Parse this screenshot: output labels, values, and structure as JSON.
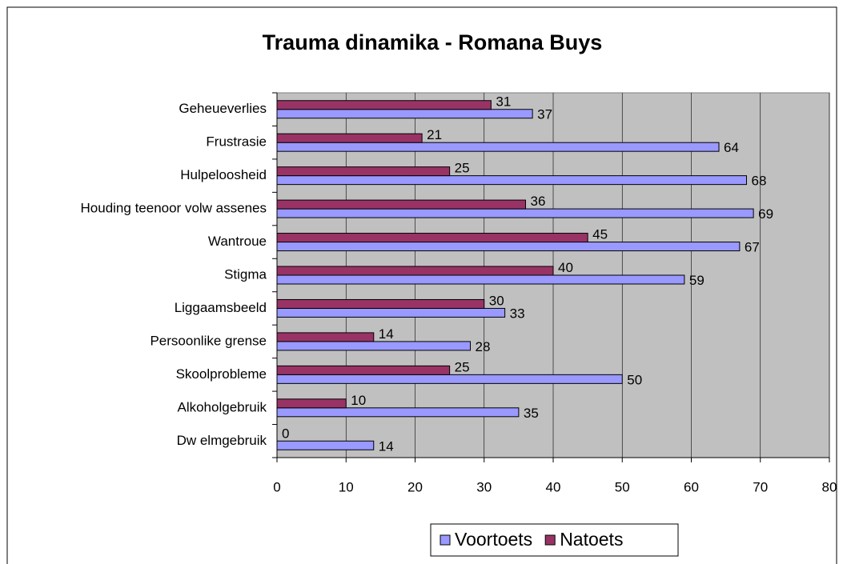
{
  "chart_data": {
    "type": "bar",
    "orientation": "horizontal",
    "title": "Trauma dinamika - Romana Buys",
    "categories": [
      "Geheueverlies",
      "Frustrasie",
      "Hulpeloosheid",
      "Houding teenoor volw assenes",
      "Wantroue",
      "Stigma",
      "Liggaamsbeeld",
      "Persoonlike grense",
      "Skoolprobleme",
      "Alkoholgebruik",
      "Dw elmgebruik"
    ],
    "series": [
      {
        "name": "Voortoets",
        "color": "#9999ff",
        "values": [
          37,
          64,
          68,
          69,
          67,
          59,
          33,
          28,
          50,
          35,
          14
        ]
      },
      {
        "name": "Natoets",
        "color": "#993366",
        "values": [
          31,
          21,
          25,
          36,
          45,
          40,
          30,
          14,
          25,
          10,
          0
        ]
      }
    ],
    "xlim": [
      0,
      80
    ],
    "xticks": [
      0,
      10,
      20,
      30,
      40,
      50,
      60,
      70,
      80
    ],
    "grid": true,
    "legend": "bottom",
    "plot_background": "#c0c0c0"
  }
}
